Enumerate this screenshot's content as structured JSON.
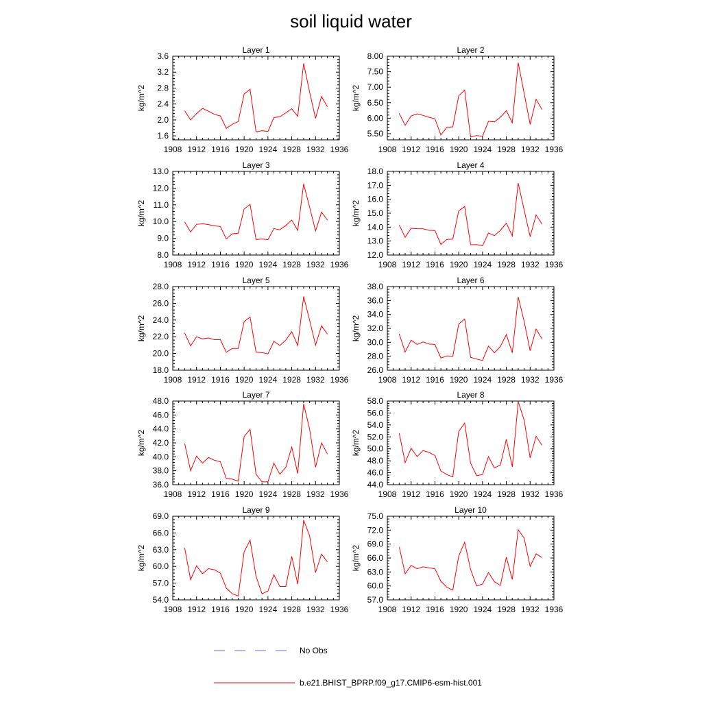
{
  "figure": {
    "title": "soil liquid water"
  },
  "legend": {
    "entries": [
      {
        "label": "No Obs",
        "color": "#6b6bd6",
        "style": "dashed"
      },
      {
        "label": "b.e21.BHIST_BPRP.f09_g17.CMIP6-esm-hist.001",
        "color": "#ff0000",
        "style": "solid"
      }
    ]
  },
  "chart_data": [
    {
      "type": "line",
      "title": "Layer 1",
      "ylabel": "kg/m^2",
      "xlim": [
        1908,
        1936
      ],
      "xticks": [
        "1908",
        "1912",
        "1916",
        "1920",
        "1924",
        "1928",
        "1932",
        "1936"
      ],
      "ylim": [
        1.5,
        3.6
      ],
      "yticks": [
        "1.6",
        "2.0",
        "2.4",
        "2.8",
        "3.2",
        "3.6"
      ],
      "series": [
        {
          "name": "b.e21.BHIST_BPRP.f09_g17.CMIP6-esm-hist.001",
          "color": "#ff0000",
          "x": [
            1910,
            1911,
            1912,
            1913,
            1914,
            1915,
            1916,
            1917,
            1918,
            1919,
            1920,
            1921,
            1922,
            1923,
            1924,
            1925,
            1926,
            1927,
            1928,
            1929,
            1930,
            1931,
            1932,
            1933,
            1934
          ],
          "values": [
            2.23,
            2.0,
            2.16,
            2.29,
            2.22,
            2.14,
            2.1,
            1.79,
            1.89,
            1.96,
            2.65,
            2.77,
            1.7,
            1.73,
            1.71,
            2.06,
            2.08,
            2.18,
            2.28,
            2.09,
            3.42,
            2.7,
            2.04,
            2.59,
            2.33
          ]
        }
      ]
    },
    {
      "type": "line",
      "title": "Layer 2",
      "ylabel": "kg/m^2",
      "xlim": [
        1908,
        1936
      ],
      "xticks": [
        "1908",
        "1912",
        "1916",
        "1920",
        "1924",
        "1928",
        "1932",
        "1936"
      ],
      "ylim": [
        5.3,
        8.0
      ],
      "yticks": [
        "5.50",
        "6.00",
        "6.50",
        "7.00",
        "7.50",
        "8.00"
      ],
      "series": [
        {
          "name": "b.e21.BHIST_BPRP.f09_g17.CMIP6-esm-hist.001",
          "color": "#ff0000",
          "x": [
            1910,
            1911,
            1912,
            1913,
            1914,
            1915,
            1916,
            1917,
            1918,
            1919,
            1920,
            1921,
            1922,
            1923,
            1924,
            1925,
            1926,
            1927,
            1928,
            1929,
            1930,
            1931,
            1932,
            1933,
            1934
          ],
          "values": [
            6.15,
            5.77,
            6.07,
            6.14,
            6.09,
            6.03,
            5.98,
            5.46,
            5.7,
            5.72,
            6.72,
            6.91,
            5.39,
            5.44,
            5.42,
            5.9,
            5.88,
            6.03,
            6.24,
            5.85,
            7.79,
            6.8,
            5.8,
            6.61,
            6.28
          ]
        }
      ]
    },
    {
      "type": "line",
      "title": "Layer 3",
      "ylabel": "kg/m^2",
      "xlim": [
        1908,
        1936
      ],
      "xticks": [
        "1908",
        "1912",
        "1916",
        "1920",
        "1924",
        "1928",
        "1932",
        "1936"
      ],
      "ylim": [
        8.0,
        13.0
      ],
      "yticks": [
        "8.0",
        "9.0",
        "10.0",
        "11.0",
        "12.0",
        "13.0"
      ],
      "series": [
        {
          "name": "b.e21.BHIST_BPRP.f09_g17.CMIP6-esm-hist.001",
          "color": "#ff0000",
          "x": [
            1910,
            1911,
            1912,
            1913,
            1914,
            1915,
            1916,
            1917,
            1918,
            1919,
            1920,
            1921,
            1922,
            1923,
            1924,
            1925,
            1926,
            1927,
            1928,
            1929,
            1930,
            1931,
            1932,
            1933,
            1934
          ],
          "values": [
            9.98,
            9.38,
            9.83,
            9.87,
            9.82,
            9.74,
            9.71,
            8.96,
            9.27,
            9.3,
            10.75,
            11.03,
            8.93,
            8.96,
            8.92,
            9.58,
            9.51,
            9.77,
            10.09,
            9.47,
            12.25,
            10.87,
            9.44,
            10.56,
            10.09
          ]
        }
      ]
    },
    {
      "type": "line",
      "title": "Layer 4",
      "ylabel": "kg/m^2",
      "xlim": [
        1908,
        1936
      ],
      "xticks": [
        "1908",
        "1912",
        "1916",
        "1920",
        "1924",
        "1928",
        "1932",
        "1936"
      ],
      "ylim": [
        12.0,
        18.0
      ],
      "yticks": [
        "12.0",
        "13.0",
        "14.0",
        "15.0",
        "16.0",
        "17.0",
        "18.0"
      ],
      "series": [
        {
          "name": "b.e21.BHIST_BPRP.f09_g17.CMIP6-esm-hist.001",
          "color": "#ff0000",
          "x": [
            1910,
            1911,
            1912,
            1913,
            1914,
            1915,
            1916,
            1917,
            1918,
            1919,
            1920,
            1921,
            1922,
            1923,
            1924,
            1925,
            1926,
            1927,
            1928,
            1929,
            1930,
            1931,
            1932,
            1933,
            1934
          ],
          "values": [
            14.15,
            13.27,
            13.92,
            13.89,
            13.88,
            13.77,
            13.76,
            12.76,
            13.12,
            13.14,
            15.16,
            15.48,
            12.74,
            12.75,
            12.67,
            13.58,
            13.39,
            13.77,
            14.29,
            13.36,
            17.16,
            15.22,
            13.32,
            14.87,
            14.22
          ]
        }
      ]
    },
    {
      "type": "line",
      "title": "Layer 5",
      "ylabel": "kg/m^2",
      "xlim": [
        1908,
        1936
      ],
      "xticks": [
        "1908",
        "1912",
        "1916",
        "1920",
        "1924",
        "1928",
        "1932",
        "1936"
      ],
      "ylim": [
        18.0,
        28.0
      ],
      "yticks": [
        "18.0",
        "20.0",
        "22.0",
        "24.0",
        "26.0",
        "28.0"
      ],
      "series": [
        {
          "name": "b.e21.BHIST_BPRP.f09_g17.CMIP6-esm-hist.001",
          "color": "#ff0000",
          "x": [
            1910,
            1911,
            1912,
            1913,
            1914,
            1915,
            1916,
            1917,
            1918,
            1919,
            1920,
            1921,
            1922,
            1923,
            1924,
            1925,
            1926,
            1927,
            1928,
            1929,
            1930,
            1931,
            1932,
            1933,
            1934
          ],
          "values": [
            22.45,
            20.9,
            22.0,
            21.75,
            21.85,
            21.65,
            21.65,
            20.15,
            20.6,
            20.6,
            23.8,
            24.35,
            20.15,
            20.1,
            19.95,
            21.45,
            20.95,
            21.6,
            22.6,
            20.95,
            26.8,
            24.0,
            21.0,
            23.3,
            22.3
          ]
        }
      ]
    },
    {
      "type": "line",
      "title": "Layer 6",
      "ylabel": "kg/m^2",
      "xlim": [
        1908,
        1936
      ],
      "xticks": [
        "1908",
        "1912",
        "1916",
        "1920",
        "1924",
        "1928",
        "1932",
        "1936"
      ],
      "ylim": [
        26.0,
        38.0
      ],
      "yticks": [
        "26.0",
        "28.0",
        "30.0",
        "32.0",
        "34.0",
        "36.0",
        "38.0"
      ],
      "series": [
        {
          "name": "b.e21.BHIST_BPRP.f09_g17.CMIP6-esm-hist.001",
          "color": "#ff0000",
          "x": [
            1910,
            1911,
            1912,
            1913,
            1914,
            1915,
            1916,
            1917,
            1918,
            1919,
            1920,
            1921,
            1922,
            1923,
            1924,
            1925,
            1926,
            1927,
            1928,
            1929,
            1930,
            1931,
            1932,
            1933,
            1934
          ],
          "values": [
            31.2,
            28.6,
            30.3,
            29.7,
            30.05,
            29.75,
            29.7,
            27.75,
            28.05,
            28.0,
            32.6,
            33.35,
            27.85,
            27.6,
            27.4,
            29.45,
            28.5,
            29.4,
            31.1,
            28.5,
            36.5,
            33.0,
            28.8,
            31.9,
            30.5
          ]
        }
      ]
    },
    {
      "type": "line",
      "title": "Layer 7",
      "ylabel": "kg/m^2",
      "xlim": [
        1908,
        1936
      ],
      "xticks": [
        "1908",
        "1912",
        "1916",
        "1920",
        "1924",
        "1928",
        "1932",
        "1936"
      ],
      "ylim": [
        36.0,
        48.0
      ],
      "yticks": [
        "36.0",
        "38.0",
        "40.0",
        "42.0",
        "44.0",
        "46.0",
        "48.0"
      ],
      "series": [
        {
          "name": "b.e21.BHIST_BPRP.f09_g17.CMIP6-esm-hist.001",
          "color": "#ff0000",
          "x": [
            1910,
            1911,
            1912,
            1913,
            1914,
            1915,
            1916,
            1917,
            1918,
            1919,
            1920,
            1921,
            1922,
            1923,
            1924,
            1925,
            1926,
            1927,
            1928,
            1929,
            1930,
            1931,
            1932,
            1933,
            1934
          ],
          "values": [
            41.9,
            38.0,
            40.1,
            39.1,
            39.9,
            39.5,
            39.3,
            36.9,
            36.8,
            36.5,
            42.9,
            43.95,
            37.5,
            36.4,
            36.4,
            39.1,
            37.5,
            38.5,
            41.4,
            37.6,
            47.6,
            44.0,
            38.5,
            42.0,
            40.4
          ]
        }
      ]
    },
    {
      "type": "line",
      "title": "Layer 8",
      "ylabel": "kg/m^2",
      "xlim": [
        1908,
        1936
      ],
      "xticks": [
        "1908",
        "1912",
        "1916",
        "1920",
        "1924",
        "1928",
        "1932",
        "1936"
      ],
      "ylim": [
        44.0,
        58.0
      ],
      "yticks": [
        "44.0",
        "46.0",
        "48.0",
        "50.0",
        "52.0",
        "54.0",
        "56.0",
        "58.0"
      ],
      "series": [
        {
          "name": "b.e21.BHIST_BPRP.f09_g17.CMIP6-esm-hist.001",
          "color": "#ff0000",
          "x": [
            1910,
            1911,
            1912,
            1913,
            1914,
            1915,
            1916,
            1917,
            1918,
            1919,
            1920,
            1921,
            1922,
            1923,
            1924,
            1925,
            1926,
            1927,
            1928,
            1929,
            1930,
            1931,
            1932,
            1933,
            1934
          ],
          "values": [
            52.6,
            47.7,
            50.1,
            48.7,
            49.7,
            49.4,
            48.9,
            46.3,
            45.7,
            45.3,
            52.9,
            54.3,
            47.6,
            45.5,
            45.7,
            48.7,
            46.8,
            47.3,
            51.6,
            47.0,
            57.9,
            54.8,
            48.5,
            52.1,
            50.6
          ]
        }
      ]
    },
    {
      "type": "line",
      "title": "Layer 9",
      "ylabel": "kg/m^2",
      "xlim": [
        1908,
        1936
      ],
      "xticks": [
        "1908",
        "1912",
        "1916",
        "1920",
        "1924",
        "1928",
        "1932",
        "1936"
      ],
      "ylim": [
        54.0,
        69.0
      ],
      "yticks": [
        "54.0",
        "57.0",
        "60.0",
        "63.0",
        "66.0",
        "69.0"
      ],
      "series": [
        {
          "name": "b.e21.BHIST_BPRP.f09_g17.CMIP6-esm-hist.001",
          "color": "#ff0000",
          "x": [
            1910,
            1911,
            1912,
            1913,
            1914,
            1915,
            1916,
            1917,
            1918,
            1919,
            1920,
            1921,
            1922,
            1923,
            1924,
            1925,
            1926,
            1927,
            1928,
            1929,
            1930,
            1931,
            1932,
            1933,
            1934
          ],
          "values": [
            63.3,
            57.6,
            60.1,
            58.7,
            59.6,
            59.4,
            58.8,
            56.1,
            55.1,
            54.7,
            62.6,
            64.7,
            58.2,
            55.1,
            55.6,
            58.5,
            56.4,
            56.4,
            61.8,
            56.8,
            68.3,
            65.5,
            58.9,
            62.2,
            60.8
          ]
        }
      ]
    },
    {
      "type": "line",
      "title": "Layer 10",
      "ylabel": "kg/m^2",
      "xlim": [
        1908,
        1936
      ],
      "xticks": [
        "1908",
        "1912",
        "1916",
        "1920",
        "1924",
        "1928",
        "1932",
        "1936"
      ],
      "ylim": [
        57.0,
        75.0
      ],
      "yticks": [
        "57.0",
        "60.0",
        "63.0",
        "66.0",
        "69.0",
        "72.0",
        "75.0"
      ],
      "series": [
        {
          "name": "b.e21.BHIST_BPRP.f09_g17.CMIP6-esm-hist.001",
          "color": "#ff0000",
          "x": [
            1910,
            1911,
            1912,
            1913,
            1914,
            1915,
            1916,
            1917,
            1918,
            1919,
            1920,
            1921,
            1922,
            1923,
            1924,
            1925,
            1926,
            1927,
            1928,
            1929,
            1930,
            1931,
            1932,
            1933,
            1934
          ],
          "values": [
            68.4,
            62.6,
            64.4,
            63.7,
            64.1,
            63.9,
            63.7,
            61.0,
            59.7,
            59.1,
            66.4,
            69.4,
            63.5,
            60.0,
            60.4,
            62.9,
            60.9,
            60.1,
            66.2,
            61.4,
            72.1,
            70.3,
            64.2,
            66.9,
            66.1
          ]
        }
      ]
    }
  ]
}
